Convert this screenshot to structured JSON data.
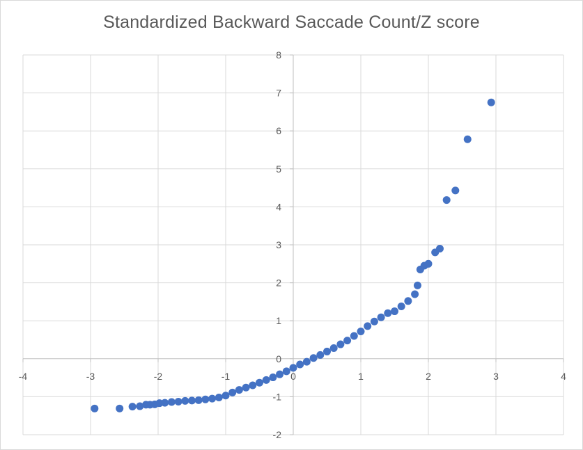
{
  "chart_data": {
    "type": "scatter",
    "title": "Standardized Backward Saccade Count/Z score",
    "xlabel": "",
    "ylabel": "",
    "xlim": [
      -4,
      4
    ],
    "ylim": [
      -2,
      8
    ],
    "x_ticks": [
      "-4",
      "-3",
      "-2",
      "-1",
      "0",
      "1",
      "2",
      "3",
      "4"
    ],
    "y_ticks": [
      "-2",
      "-1",
      "0",
      "1",
      "2",
      "3",
      "4",
      "5",
      "6",
      "7",
      "8"
    ],
    "grid": true,
    "legend": "none",
    "marker_color": "#4472c4",
    "series": [
      {
        "points": [
          [
            -2.94,
            -1.31
          ],
          [
            -2.57,
            -1.31
          ],
          [
            -2.38,
            -1.26
          ],
          [
            -2.27,
            -1.25
          ],
          [
            -2.18,
            -1.21
          ],
          [
            -2.12,
            -1.21
          ],
          [
            -2.05,
            -1.2
          ],
          [
            -1.98,
            -1.17
          ],
          [
            -1.9,
            -1.16
          ],
          [
            -1.8,
            -1.14
          ],
          [
            -1.7,
            -1.13
          ],
          [
            -1.6,
            -1.11
          ],
          [
            -1.5,
            -1.1
          ],
          [
            -1.4,
            -1.09
          ],
          [
            -1.3,
            -1.07
          ],
          [
            -1.2,
            -1.05
          ],
          [
            -1.1,
            -1.02
          ],
          [
            -1.0,
            -0.97
          ],
          [
            -0.9,
            -0.89
          ],
          [
            -0.8,
            -0.82
          ],
          [
            -0.7,
            -0.76
          ],
          [
            -0.6,
            -0.7
          ],
          [
            -0.5,
            -0.63
          ],
          [
            -0.4,
            -0.56
          ],
          [
            -0.3,
            -0.49
          ],
          [
            -0.2,
            -0.41
          ],
          [
            -0.1,
            -0.33
          ],
          [
            0.0,
            -0.24
          ],
          [
            0.1,
            -0.15
          ],
          [
            0.2,
            -0.08
          ],
          [
            0.3,
            0.02
          ],
          [
            0.4,
            0.1
          ],
          [
            0.5,
            0.19
          ],
          [
            0.6,
            0.28
          ],
          [
            0.7,
            0.38
          ],
          [
            0.8,
            0.48
          ],
          [
            0.9,
            0.6
          ],
          [
            1.0,
            0.72
          ],
          [
            1.1,
            0.86
          ],
          [
            1.2,
            0.98
          ],
          [
            1.3,
            1.09
          ],
          [
            1.4,
            1.2
          ],
          [
            1.5,
            1.25
          ],
          [
            1.6,
            1.38
          ],
          [
            1.7,
            1.52
          ],
          [
            1.8,
            1.7
          ],
          [
            1.84,
            1.93
          ],
          [
            1.88,
            2.35
          ],
          [
            1.94,
            2.45
          ],
          [
            2.0,
            2.5
          ],
          [
            2.1,
            2.8
          ],
          [
            2.17,
            2.9
          ],
          [
            2.27,
            4.18
          ],
          [
            2.4,
            4.43
          ],
          [
            2.58,
            5.78
          ],
          [
            2.93,
            6.75
          ]
        ]
      }
    ]
  }
}
